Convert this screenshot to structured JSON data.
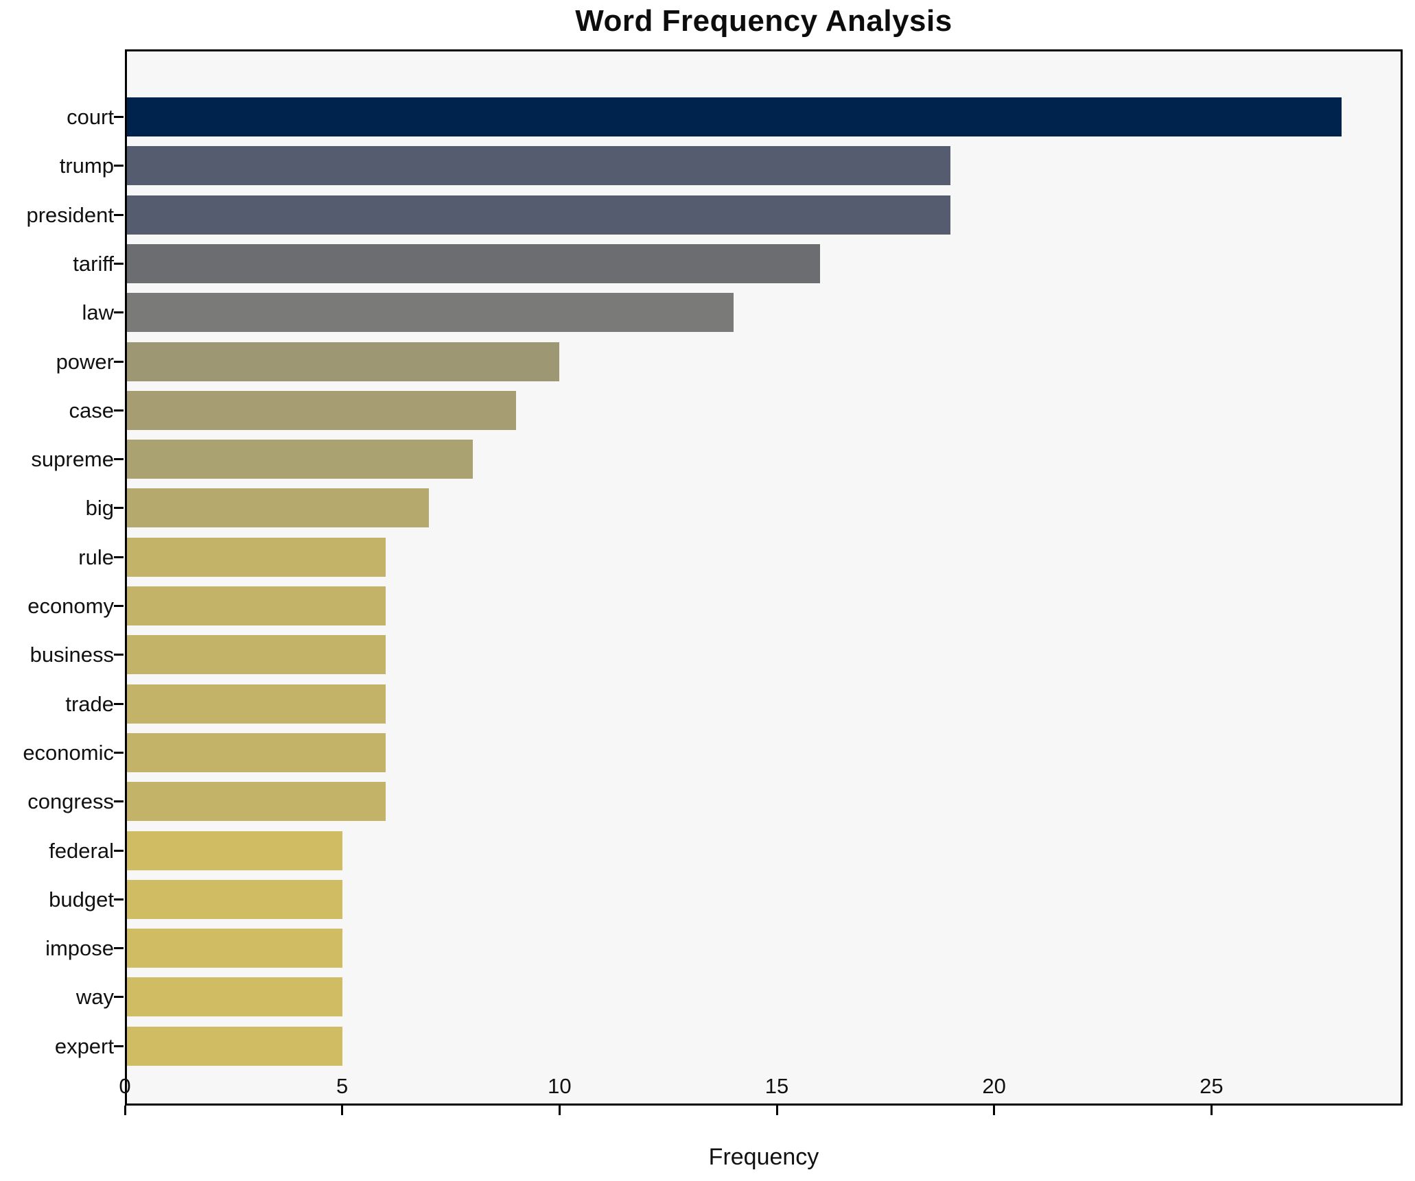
{
  "title": "Word Frequency Analysis",
  "xlabel": "Frequency",
  "colors": {
    "figure_background": "#ffffff",
    "plot_background": "#f7f7f8",
    "axis_frame": "#000000",
    "text": "#111111"
  },
  "chart_data": {
    "type": "bar",
    "orientation": "horizontal",
    "title": "Word Frequency Analysis",
    "xlabel": "Frequency",
    "ylabel": "",
    "categories": [
      "court",
      "trump",
      "president",
      "tariff",
      "law",
      "power",
      "case",
      "supreme",
      "big",
      "rule",
      "economy",
      "business",
      "trade",
      "economic",
      "congress",
      "federal",
      "budget",
      "impose",
      "way",
      "expert"
    ],
    "values": [
      28,
      19,
      19,
      16,
      14,
      10,
      9,
      8,
      7,
      6,
      6,
      6,
      6,
      6,
      6,
      5,
      5,
      5,
      5,
      5
    ],
    "bar_colors": [
      "#00234e",
      "#555c70",
      "#555c70",
      "#6b6d70",
      "#7a7a78",
      "#9e9774",
      "#a69d72",
      "#aba271",
      "#b5a96d",
      "#c2b368",
      "#c2b368",
      "#c2b368",
      "#c2b368",
      "#c2b368",
      "#c2b368",
      "#cfbc63",
      "#cfbc63",
      "#cfbc63",
      "#cfbc63",
      "#cfbc63"
    ],
    "xticks": [
      0,
      5,
      10,
      15,
      20,
      25
    ],
    "xlim": [
      0,
      29.4
    ],
    "grid": false,
    "legend": false,
    "colormap": "cividis-by-frequency"
  }
}
